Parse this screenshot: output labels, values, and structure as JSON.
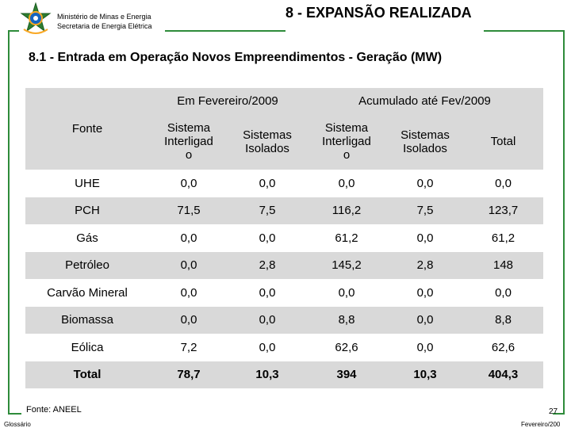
{
  "header": {
    "ministry_line1": "Ministério de Minas e Energia",
    "ministry_line2": "Secretaria de Energia Elétrica",
    "title": "8 - EXPANSÃO REALIZADA",
    "accent_color": "#2e8b3a"
  },
  "subtitle": "8.1 - Entrada em Operação Novos Empreendimentos - Geração (MW)",
  "table": {
    "col_fonte": "Fonte",
    "group_feb": "Em Fevereiro/2009",
    "group_acc": "Acumulado até Fev/2009",
    "sub_interligado_1": "Sistema",
    "sub_interligado_2": "Interligad",
    "sub_interligado_3": "o",
    "sub_isolados_1": "Sistemas",
    "sub_isolados_2": "Isolados",
    "sub_total": "Total",
    "rows": [
      {
        "fonte": "UHE",
        "feb_si": "0,0",
        "feb_iso": "0,0",
        "acc_si": "0,0",
        "acc_iso": "0,0",
        "total": "0,0"
      },
      {
        "fonte": "PCH",
        "feb_si": "71,5",
        "feb_iso": "7,5",
        "acc_si": "116,2",
        "acc_iso": "7,5",
        "total": "123,7"
      },
      {
        "fonte": "Gás",
        "feb_si": "0,0",
        "feb_iso": "0,0",
        "acc_si": "61,2",
        "acc_iso": "0,0",
        "total": "61,2"
      },
      {
        "fonte": "Petróleo",
        "feb_si": "0,0",
        "feb_iso": "2,8",
        "acc_si": "145,2",
        "acc_iso": "2,8",
        "total": "148"
      },
      {
        "fonte": "Carvão Mineral",
        "feb_si": "0,0",
        "feb_iso": "0,0",
        "acc_si": "0,0",
        "acc_iso": "0,0",
        "total": "0,0"
      },
      {
        "fonte": "Biomassa",
        "feb_si": "0,0",
        "feb_iso": "0,0",
        "acc_si": "8,8",
        "acc_iso": "0,0",
        "total": "8,8"
      },
      {
        "fonte": "Eólica",
        "feb_si": "7,2",
        "feb_iso": "0,0",
        "acc_si": "62,6",
        "acc_iso": "0,0",
        "total": "62,6"
      },
      {
        "fonte": "Total",
        "feb_si": "78,7",
        "feb_iso": "10,3",
        "acc_si": "394",
        "acc_iso": "10,3",
        "total": "404,3"
      }
    ]
  },
  "footer": {
    "source": "Fonte: ANEEL",
    "glossary": "Glossário",
    "page_number": "27",
    "date": "Fevereiro/200"
  }
}
